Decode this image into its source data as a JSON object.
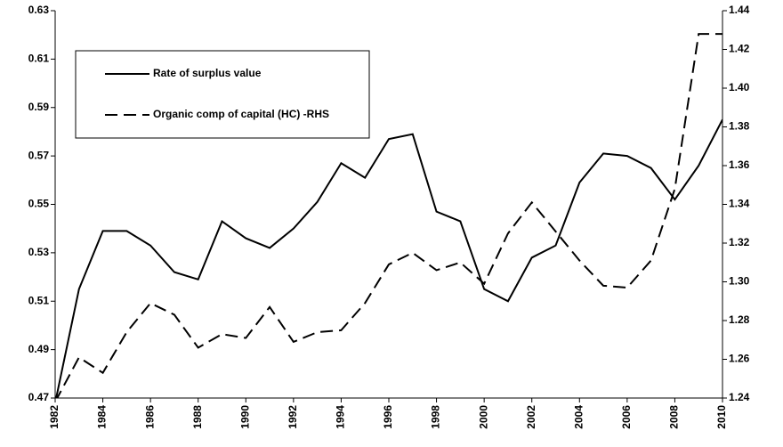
{
  "chart_data": {
    "type": "line",
    "x": [
      1982,
      1983,
      1984,
      1985,
      1986,
      1987,
      1988,
      1989,
      1990,
      1991,
      1992,
      1993,
      1994,
      1995,
      1996,
      1997,
      1998,
      1999,
      2000,
      2001,
      2002,
      2003,
      2004,
      2005,
      2006,
      2007,
      2008,
      2009,
      2010
    ],
    "xlim": [
      1982,
      2010
    ],
    "xticks": [
      1982,
      1984,
      1986,
      1988,
      1990,
      1992,
      1994,
      1996,
      1998,
      2000,
      2002,
      2004,
      2006,
      2008,
      2010
    ],
    "ylim": [
      0.47,
      0.63
    ],
    "yticks": [
      0.47,
      0.49,
      0.51,
      0.53,
      0.55,
      0.57,
      0.59,
      0.61,
      0.63
    ],
    "y2lim": [
      1.24,
      1.44
    ],
    "y2ticks": [
      1.24,
      1.26,
      1.28,
      {
        "value": 1.3,
        "label": "1.30"
      },
      1.32,
      1.34,
      1.36,
      1.38,
      {
        "value": 1.4,
        "label": "1.40"
      },
      1.42,
      1.44
    ],
    "series": [
      {
        "name": "Rate of surplus value",
        "color": "#000000",
        "linestyle": "solid",
        "values": [
          0.468,
          0.515,
          0.539,
          0.539,
          0.533,
          0.522,
          0.519,
          0.543,
          0.536,
          0.532,
          0.54,
          0.551,
          0.567,
          0.561,
          0.577,
          0.579,
          0.547,
          0.543,
          0.515,
          0.51,
          0.528,
          0.533,
          0.559,
          0.571,
          0.57,
          0.565,
          0.552,
          0.566,
          0.585
        ]
      },
      {
        "name": "Organic comp of capital (HC) -RHS",
        "color": "#000000",
        "linestyle": "dashed",
        "axis": "y2",
        "values": [
          1.238,
          1.261,
          1.253,
          1.274,
          1.289,
          1.283,
          1.266,
          1.273,
          1.271,
          1.287,
          1.269,
          1.274,
          1.275,
          1.289,
          1.309,
          1.315,
          1.306,
          1.31,
          1.299,
          1.325,
          1.341,
          1.326,
          1.311,
          1.298,
          1.297,
          1.311,
          1.348,
          1.428,
          1.428
        ]
      }
    ]
  }
}
